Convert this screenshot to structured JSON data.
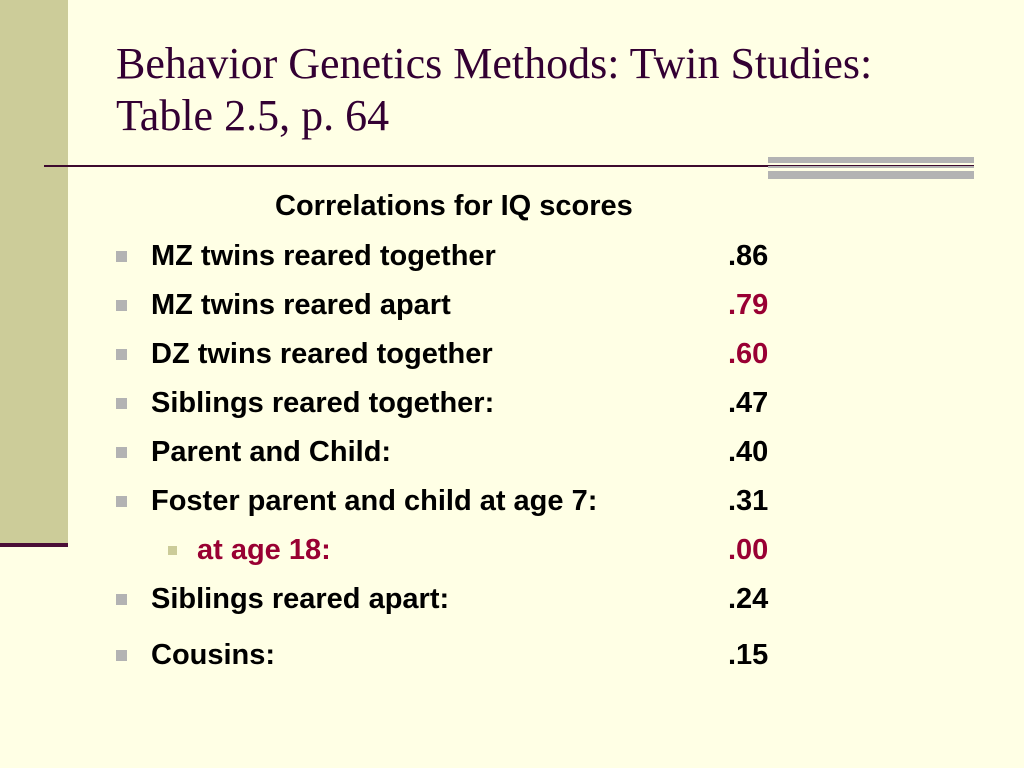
{
  "slide": {
    "title": "Behavior Genetics Methods: Twin Studies: Table 2.5, p. 64",
    "subheading": "Correlations for IQ scores"
  },
  "colors": {
    "background": "#FFFFE5",
    "sidebar": "#CCCC99",
    "title_text": "#330033",
    "accent_text": "#990033",
    "bullet": "#B3B3B3"
  },
  "rows": [
    {
      "label": "MZ twins reared together",
      "value": ".86",
      "level": 1,
      "label_accent": false,
      "value_accent": false
    },
    {
      "label": "MZ twins reared apart",
      "value": ".79",
      "level": 1,
      "label_accent": false,
      "value_accent": true
    },
    {
      "label": "DZ twins reared together",
      "value": ".60",
      "level": 1,
      "label_accent": false,
      "value_accent": true
    },
    {
      "label": "Siblings reared together:",
      "value": ".47",
      "level": 1,
      "label_accent": false,
      "value_accent": false
    },
    {
      "label": "Parent and Child:",
      "value": ".40",
      "level": 1,
      "label_accent": false,
      "value_accent": false
    },
    {
      "label": "Foster parent and child at age 7:",
      "value": ".31",
      "level": 1,
      "label_accent": false,
      "value_accent": false
    },
    {
      "label": "at age 18:",
      "value": ".00",
      "level": 2,
      "label_accent": true,
      "value_accent": true
    },
    {
      "label": "Siblings reared apart:",
      "value": ".24",
      "level": 1,
      "label_accent": false,
      "value_accent": false
    },
    {
      "label": "Cousins:",
      "value": ".15",
      "level": 1,
      "label_accent": false,
      "value_accent": false
    }
  ]
}
